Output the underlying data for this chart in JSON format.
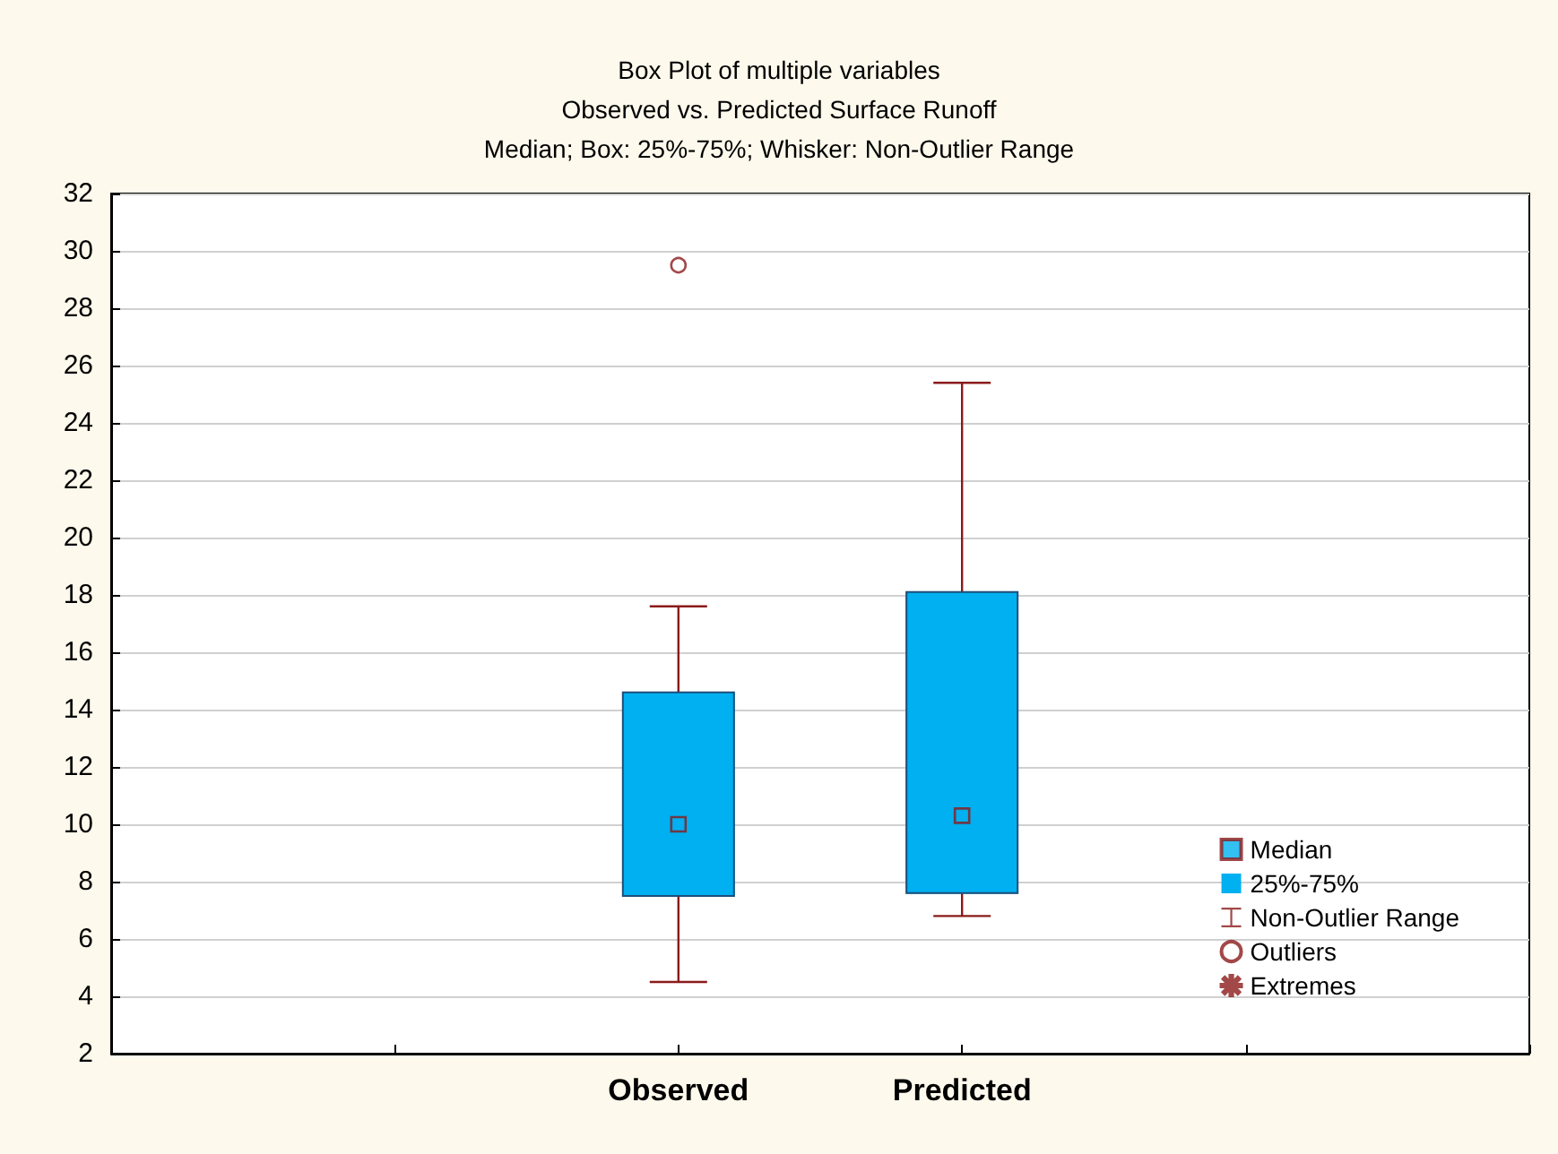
{
  "chart_data": {
    "type": "box",
    "title": "Box Plot of multiple variables",
    "subtitle": "Observed vs. Predicted Surface Runoff\nMedian; Box: 25%-75%; Whisker: Non-Outlier Range",
    "categories": [
      null,
      null,
      "Observed",
      "Predicted",
      null,
      null
    ],
    "ylim": [
      2,
      32
    ],
    "yticks": [
      2,
      4,
      6,
      8,
      10,
      12,
      14,
      16,
      18,
      20,
      22,
      24,
      26,
      28,
      30,
      32
    ],
    "grid": "y",
    "legend": "bottom right",
    "series": [
      {
        "name": "Median",
        "type": "scatter",
        "marker": "square",
        "color": "#8b1a1a",
        "values": [
          null,
          null,
          10,
          10.3,
          null,
          null
        ]
      },
      {
        "name": "25%-75%",
        "type": "box",
        "color": "#00b0f0",
        "boxes": [
          null,
          null,
          {
            "low": 4.5,
            "q1": 7.5,
            "median": 10,
            "q3": 14.6,
            "high": 17.6
          },
          {
            "low": 6.8,
            "q1": 7.6,
            "median": 10.3,
            "q3": 18.1,
            "high": 25.4
          },
          null,
          null
        ]
      },
      {
        "name": "Non-Outlier Range",
        "type": "box",
        "color": "#8b1a1a",
        "values": [
          null,
          null,
          null,
          null,
          null,
          null
        ]
      },
      {
        "name": "Outliers",
        "type": "scatter",
        "marker": "circle",
        "color": "#8b1a1a",
        "values": [
          null,
          null,
          29.5,
          null,
          null,
          null
        ]
      },
      {
        "name": "Extremes",
        "type": "scatter",
        "marker": "star",
        "color": "#8b1a1a",
        "values": [
          null,
          null,
          null,
          null,
          null,
          null
        ]
      }
    ]
  }
}
